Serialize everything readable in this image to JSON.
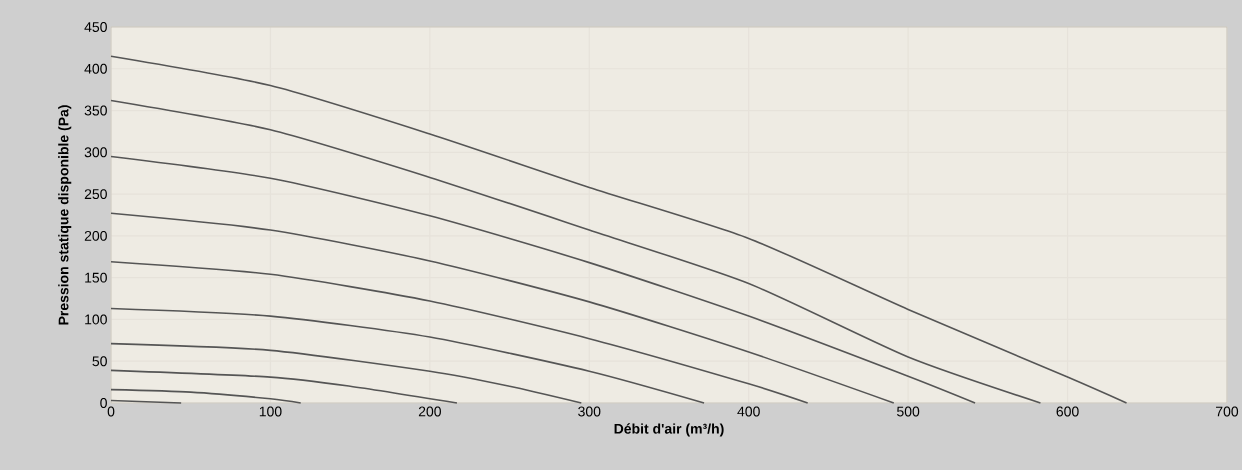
{
  "chart_data": {
    "type": "line",
    "xlabel": "Débit d'air (m³/h)",
    "ylabel": "Pression statique disponible (Pa)",
    "xlim": [
      0,
      700
    ],
    "ylim": [
      0,
      450
    ],
    "xticks": [
      0,
      100,
      200,
      300,
      400,
      500,
      600,
      700
    ],
    "yticks": [
      0,
      50,
      100,
      150,
      200,
      250,
      300,
      350,
      400,
      450
    ],
    "grid": true,
    "marker": "none",
    "line_style": "solid",
    "series": [
      {
        "color": "#555555",
        "x": [
          0,
          100,
          200,
          300,
          400,
          500,
          600,
          637
        ],
        "values": [
          415,
          380,
          322,
          258,
          197,
          112,
          31,
          0
        ]
      },
      {
        "color": "#555555",
        "x": [
          0,
          100,
          200,
          300,
          400,
          500,
          583
        ],
        "values": [
          362,
          327,
          270,
          207,
          143,
          55,
          0
        ]
      },
      {
        "color": "#555555",
        "x": [
          0,
          100,
          200,
          300,
          400,
          500,
          542
        ],
        "values": [
          295,
          269,
          224,
          168,
          104,
          32,
          0
        ]
      },
      {
        "color": "#555555",
        "x": [
          0,
          100,
          200,
          300,
          400,
          491
        ],
        "values": [
          227,
          207,
          170,
          121,
          61,
          0
        ]
      },
      {
        "color": "#555555",
        "x": [
          0,
          100,
          200,
          300,
          400,
          437
        ],
        "values": [
          169,
          154,
          122,
          77,
          23,
          0
        ]
      },
      {
        "color": "#555555",
        "x": [
          0,
          100,
          200,
          300,
          372
        ],
        "values": [
          113,
          104,
          79,
          38,
          0
        ]
      },
      {
        "color": "#555555",
        "x": [
          0,
          100,
          200,
          250,
          295
        ],
        "values": [
          71,
          63,
          38,
          20,
          0
        ]
      },
      {
        "color": "#555555",
        "x": [
          0,
          100,
          150,
          217
        ],
        "values": [
          39,
          31,
          20,
          0
        ]
      },
      {
        "color": "#555555",
        "x": [
          0,
          50,
          100,
          119
        ],
        "values": [
          16,
          13,
          5,
          0
        ]
      },
      {
        "color": "#555555",
        "x": [
          0,
          44
        ],
        "values": [
          3,
          0
        ]
      }
    ]
  }
}
